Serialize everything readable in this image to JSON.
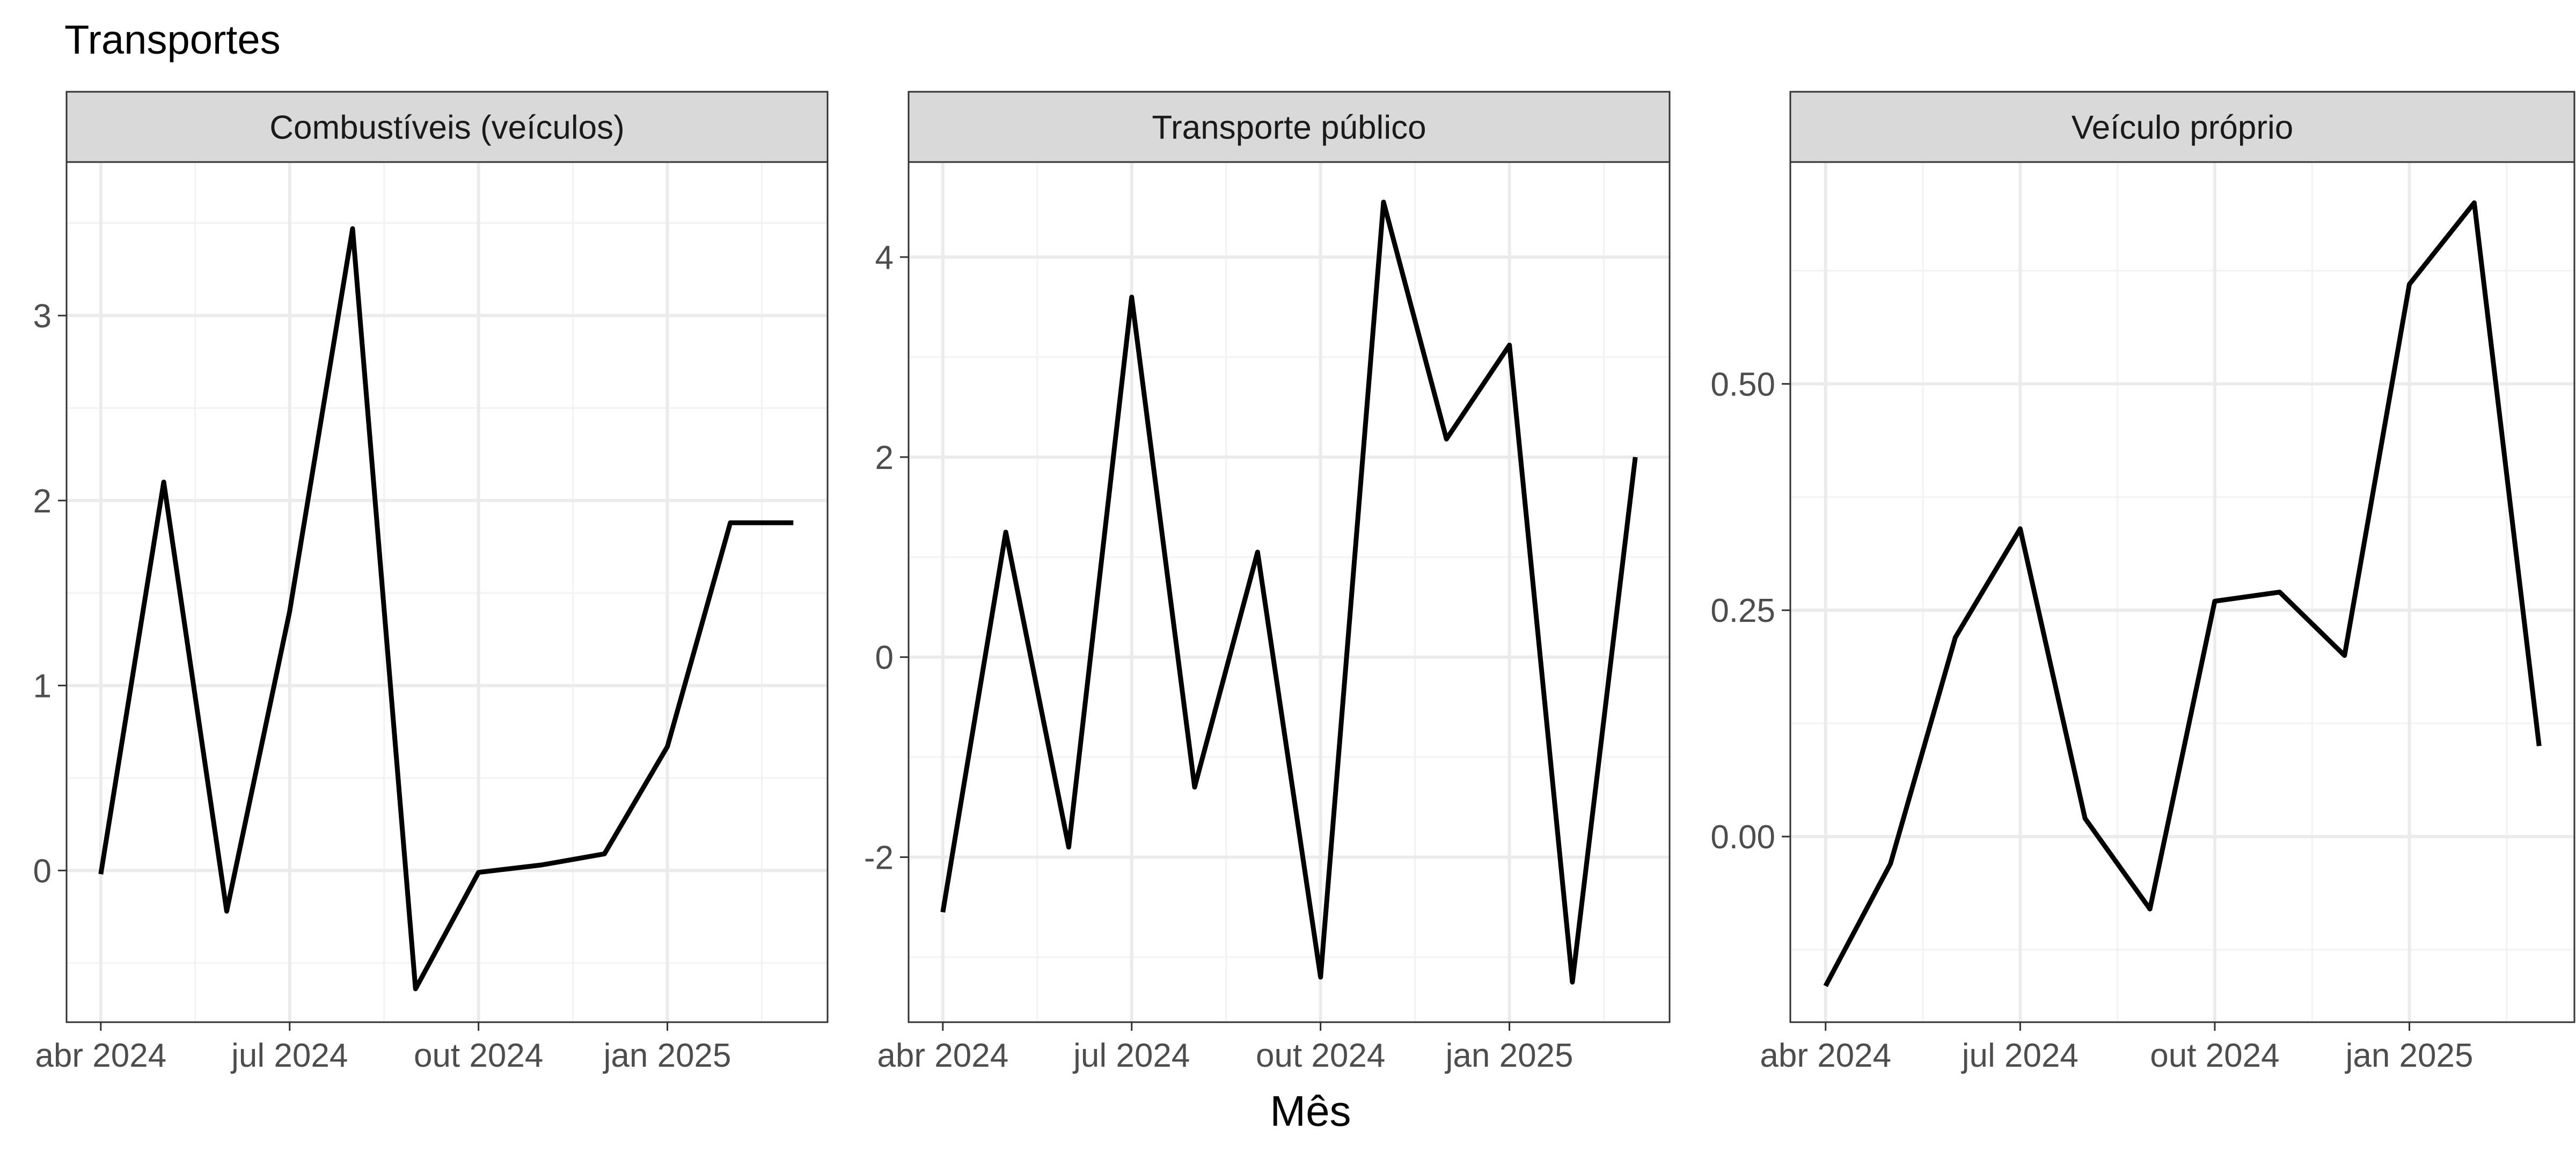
{
  "chart_data": {
    "type": "line",
    "title": "Transportes",
    "xlabel": "Mês",
    "ylabel": "",
    "x": [
      "2024-04",
      "2024-05",
      "2024-06",
      "2024-07",
      "2024-08",
      "2024-09",
      "2024-10",
      "2024-11",
      "2024-12",
      "2025-01",
      "2025-02",
      "2025-03"
    ],
    "x_ticks": [
      {
        "value": "2024-04",
        "label": "abr 2024"
      },
      {
        "value": "2024-07",
        "label": "jul 2024"
      },
      {
        "value": "2024-10",
        "label": "out 2024"
      },
      {
        "value": "2025-01",
        "label": "jan 2025"
      }
    ],
    "grid": true,
    "legend": "none",
    "line_color": "#000000",
    "panels": [
      {
        "name": "Combustíveis (veículos)",
        "values": [
          -0.02,
          2.1,
          -0.22,
          1.4,
          3.47,
          -0.64,
          -0.01,
          0.03,
          0.09,
          0.67,
          1.88,
          1.88
        ],
        "ylim": [
          -0.82,
          3.83
        ],
        "y_ticks": [
          0,
          1,
          2,
          3
        ],
        "y_tick_labels": [
          "0",
          "1",
          "2",
          "3"
        ],
        "y_minor": [
          -0.5,
          0.5,
          1.5,
          2.5,
          3.5
        ]
      },
      {
        "name": "Transporte público",
        "values": [
          -2.55,
          1.25,
          -1.9,
          3.6,
          -1.3,
          1.05,
          -3.2,
          4.55,
          2.18,
          3.12,
          -3.25,
          2.0
        ],
        "ylim": [
          -3.65,
          4.95
        ],
        "y_ticks": [
          -2,
          0,
          2,
          4
        ],
        "y_tick_labels": [
          "-2",
          "0",
          "2",
          "4"
        ],
        "y_minor": [
          -3,
          -1,
          1,
          3
        ]
      },
      {
        "name": "Veículo próprio",
        "values": [
          -0.165,
          -0.03,
          0.22,
          0.34,
          0.02,
          -0.08,
          0.26,
          0.27,
          0.2,
          0.61,
          0.7,
          0.1
        ],
        "ylim": [
          -0.205,
          0.745
        ],
        "y_ticks": [
          0,
          0.25,
          0.5
        ],
        "y_tick_labels": [
          "0.00",
          "0.25",
          "0.50"
        ],
        "y_minor": [
          -0.125,
          0.125,
          0.375,
          0.625
        ]
      }
    ]
  }
}
